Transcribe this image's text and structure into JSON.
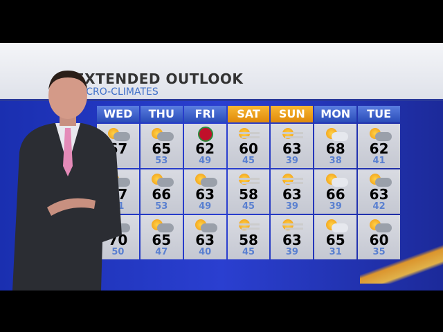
{
  "header": {
    "title": "EXTENDED OUTLOOK",
    "subtitle": "MICRO-CLIMATES"
  },
  "days": [
    {
      "label": "WED",
      "weekend": false
    },
    {
      "label": "THU",
      "weekend": false
    },
    {
      "label": "FRI",
      "weekend": false
    },
    {
      "label": "SAT",
      "weekend": true
    },
    {
      "label": "SUN",
      "weekend": true
    },
    {
      "label": "MON",
      "weekend": false
    },
    {
      "label": "TUE",
      "weekend": false
    }
  ],
  "rows": [
    [
      {
        "hi": "67",
        "lo": "",
        "icon": "partly-cloudy-icon"
      },
      {
        "hi": "65",
        "lo": "53",
        "icon": "partly-cloudy-icon"
      },
      {
        "hi": "62",
        "lo": "49",
        "icon": "christmas-ornament-icon"
      },
      {
        "hi": "60",
        "lo": "45",
        "icon": "hazy-sun-icon"
      },
      {
        "hi": "63",
        "lo": "39",
        "icon": "hazy-sun-icon"
      },
      {
        "hi": "68",
        "lo": "38",
        "icon": "mostly-cloudy-icon"
      },
      {
        "hi": "62",
        "lo": "41",
        "icon": "partly-cloudy-icon"
      }
    ],
    [
      {
        "hi": "67",
        "lo": "51",
        "icon": "partly-cloudy-icon"
      },
      {
        "hi": "66",
        "lo": "53",
        "icon": "partly-cloudy-icon"
      },
      {
        "hi": "63",
        "lo": "49",
        "icon": "partly-cloudy-icon"
      },
      {
        "hi": "58",
        "lo": "45",
        "icon": "hazy-sun-icon"
      },
      {
        "hi": "63",
        "lo": "39",
        "icon": "hazy-sun-icon"
      },
      {
        "hi": "66",
        "lo": "39",
        "icon": "mostly-cloudy-icon"
      },
      {
        "hi": "63",
        "lo": "42",
        "icon": "partly-cloudy-icon"
      }
    ],
    [
      {
        "hi": "70",
        "lo": "50",
        "icon": "partly-cloudy-icon"
      },
      {
        "hi": "65",
        "lo": "47",
        "icon": "partly-cloudy-icon"
      },
      {
        "hi": "63",
        "lo": "40",
        "icon": "partly-cloudy-icon"
      },
      {
        "hi": "58",
        "lo": "45",
        "icon": "hazy-sun-icon"
      },
      {
        "hi": "63",
        "lo": "39",
        "icon": "hazy-sun-icon"
      },
      {
        "hi": "65",
        "lo": "31",
        "icon": "mostly-cloudy-icon"
      },
      {
        "hi": "60",
        "lo": "35",
        "icon": "partly-cloudy-icon"
      }
    ]
  ],
  "colors": {
    "weekday_header": "#3a5ccc",
    "weekend_header": "#f0a020",
    "high_temp": "#000000",
    "low_temp": "#5a80d0",
    "background": "#2a3fd0"
  }
}
